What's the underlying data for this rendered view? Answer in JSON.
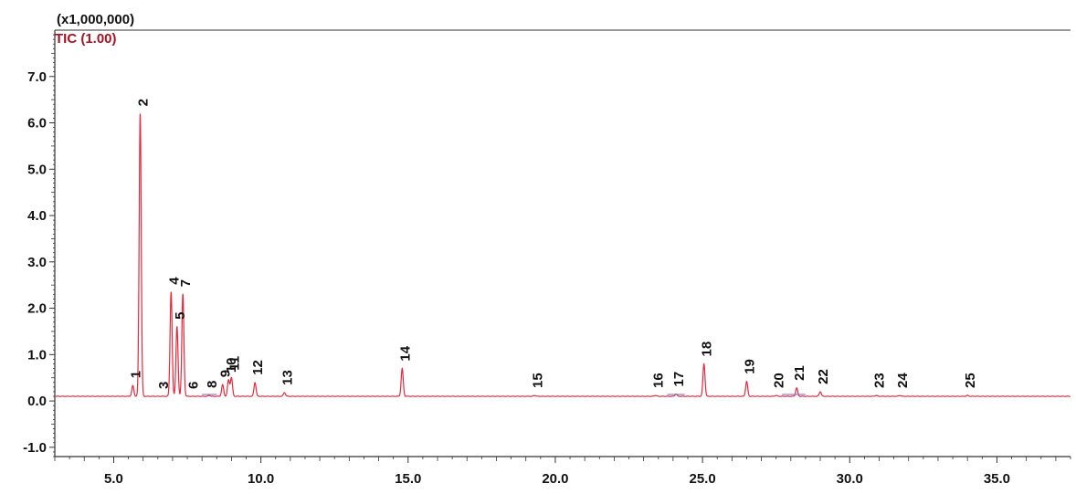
{
  "chart_data": {
    "type": "line",
    "title": "",
    "scale_label": "(x1,000,000)",
    "trace_label": "TIC (1.00)",
    "xlabel": "",
    "ylabel": "",
    "xlim": [
      3.0,
      37.5
    ],
    "ylim": [
      -1.2,
      8.0
    ],
    "x_ticks": [
      5.0,
      10.0,
      15.0,
      20.0,
      25.0,
      30.0,
      35.0
    ],
    "x_tick_labels": [
      "5.0",
      "10.0",
      "15.0",
      "20.0",
      "25.0",
      "30.0",
      "35.0"
    ],
    "y_ticks": [
      -1.0,
      0.0,
      1.0,
      2.0,
      3.0,
      4.0,
      5.0,
      6.0,
      7.0
    ],
    "y_tick_labels": [
      "-1.0",
      "0.0",
      "1.0",
      "2.0",
      "3.0",
      "4.0",
      "5.0",
      "6.0",
      "7.0"
    ],
    "baseline": 0.1,
    "grid": false,
    "colors": {
      "trace": "#e8283c",
      "text": "#111111",
      "trace_label": "#aa1122",
      "axis": "#333333",
      "secondary_trace": "#6a6ad8"
    },
    "peaks": [
      {
        "label": "1",
        "x": 5.65,
        "y": 0.33
      },
      {
        "label": "2",
        "x": 5.9,
        "y": 6.2
      },
      {
        "label": "3",
        "x": 6.6,
        "y": 0.1
      },
      {
        "label": "4",
        "x": 6.95,
        "y": 2.35
      },
      {
        "label": "5",
        "x": 7.15,
        "y": 1.6
      },
      {
        "label": "6",
        "x": 7.6,
        "y": 0.1
      },
      {
        "label": "7",
        "x": 7.35,
        "y": 2.3
      },
      {
        "label": "8",
        "x": 8.25,
        "y": 0.12
      },
      {
        "label": "9",
        "x": 8.7,
        "y": 0.35
      },
      {
        "label": "10",
        "x": 8.9,
        "y": 0.45
      },
      {
        "label": "11",
        "x": 9.0,
        "y": 0.5
      },
      {
        "label": "12",
        "x": 9.8,
        "y": 0.4
      },
      {
        "label": "13",
        "x": 10.8,
        "y": 0.18
      },
      {
        "label": "14",
        "x": 14.8,
        "y": 0.7
      },
      {
        "label": "15",
        "x": 19.3,
        "y": 0.12
      },
      {
        "label": "16",
        "x": 23.4,
        "y": 0.12
      },
      {
        "label": "17",
        "x": 24.1,
        "y": 0.15
      },
      {
        "label": "18",
        "x": 25.05,
        "y": 0.8
      },
      {
        "label": "19",
        "x": 26.5,
        "y": 0.42
      },
      {
        "label": "20",
        "x": 27.5,
        "y": 0.12
      },
      {
        "label": "21",
        "x": 28.2,
        "y": 0.28
      },
      {
        "label": "22",
        "x": 29.0,
        "y": 0.2
      },
      {
        "label": "23",
        "x": 30.9,
        "y": 0.12
      },
      {
        "label": "24",
        "x": 31.7,
        "y": 0.12
      },
      {
        "label": "25",
        "x": 34.0,
        "y": 0.12
      }
    ]
  }
}
